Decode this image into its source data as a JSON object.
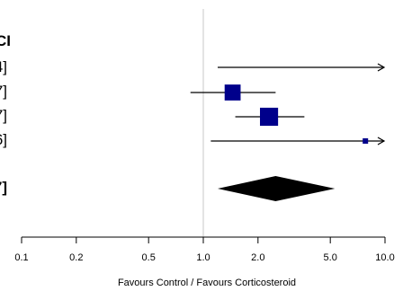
{
  "chart_data": {
    "type": "forest",
    "header_fragment": "CI",
    "xlabel": "Favours Control / Favours Corticosteroid",
    "x_scale": "log",
    "xlim": [
      0.1,
      10
    ],
    "ticks": [
      {
        "value": 0.1,
        "label": "0.1"
      },
      {
        "value": 0.2,
        "label": "0.2"
      },
      {
        "value": 0.5,
        "label": "0.5"
      },
      {
        "value": 1.0,
        "label": "1.0"
      },
      {
        "value": 2.0,
        "label": "2.0"
      },
      {
        "value": 5.0,
        "label": "5.0"
      },
      {
        "value": 10.0,
        "label": "10.0"
      }
    ],
    "reference_line": 1.0,
    "studies": [
      {
        "label_fragment": "4]",
        "estimate": null,
        "lower": 1.2,
        "upper": 10,
        "arrow_right": true,
        "weight": 0
      },
      {
        "label_fragment": "7]",
        "estimate": 1.45,
        "lower": 0.85,
        "upper": 2.5,
        "arrow_right": false,
        "weight": 0.35
      },
      {
        "label_fragment": "7]",
        "estimate": 2.3,
        "lower": 1.5,
        "upper": 3.6,
        "arrow_right": false,
        "weight": 0.45
      },
      {
        "label_fragment": "6]",
        "estimate": 7.8,
        "lower": 1.1,
        "upper": 10,
        "arrow_right": true,
        "weight": 0.04
      }
    ],
    "pooled": {
      "label_fragment": "7]",
      "estimate": 2.5,
      "lower": 1.2,
      "upper": 5.3
    },
    "colors": {
      "box": "#00008b",
      "diamond": "#000000",
      "ref_line": "#c8c8c8",
      "line": "#000000"
    }
  }
}
